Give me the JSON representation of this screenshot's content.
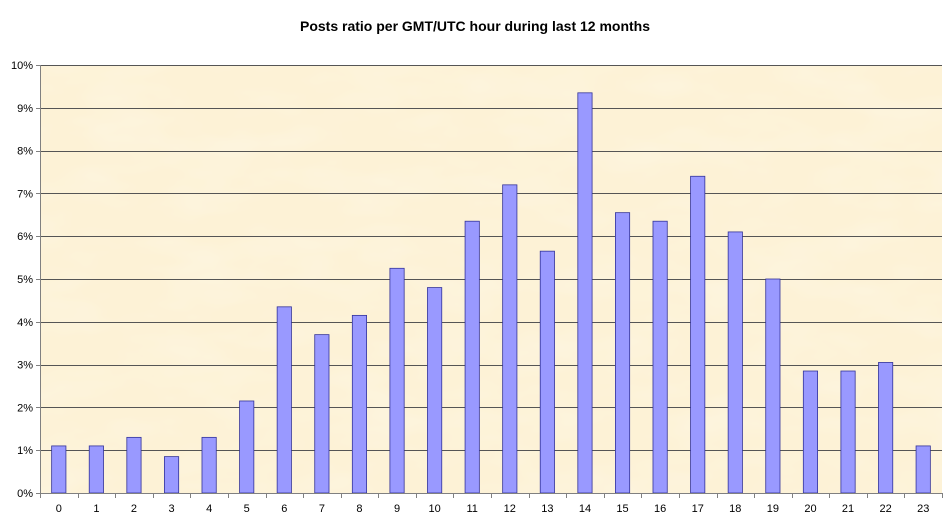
{
  "chart_data": {
    "type": "bar",
    "title": "Posts ratio per GMT/UTC hour during last 12 months",
    "xlabel": "",
    "ylabel": "",
    "categories": [
      "0",
      "1",
      "2",
      "3",
      "4",
      "5",
      "6",
      "7",
      "8",
      "9",
      "10",
      "11",
      "12",
      "13",
      "14",
      "15",
      "16",
      "17",
      "18",
      "19",
      "20",
      "21",
      "22",
      "23"
    ],
    "values": [
      1.1,
      1.1,
      1.3,
      0.85,
      1.3,
      2.15,
      4.35,
      3.7,
      4.15,
      5.25,
      4.8,
      6.35,
      7.2,
      5.65,
      9.35,
      6.55,
      6.35,
      7.4,
      6.1,
      5.0,
      2.85,
      2.85,
      3.05,
      1.1
    ],
    "ylim": [
      0,
      10
    ],
    "yticks": [
      0,
      1,
      2,
      3,
      4,
      5,
      6,
      7,
      8,
      9,
      10
    ],
    "ytick_labels": [
      "0%",
      "1%",
      "2%",
      "3%",
      "4%",
      "5%",
      "6%",
      "7%",
      "8%",
      "9%",
      "10%"
    ],
    "grid": true,
    "legend": "none",
    "colors": {
      "bar_fill": "#9999ff",
      "bar_stroke": "#333399",
      "plot_background": "#fdf2d6",
      "gridline": "#555555",
      "axis": "#808080"
    }
  }
}
